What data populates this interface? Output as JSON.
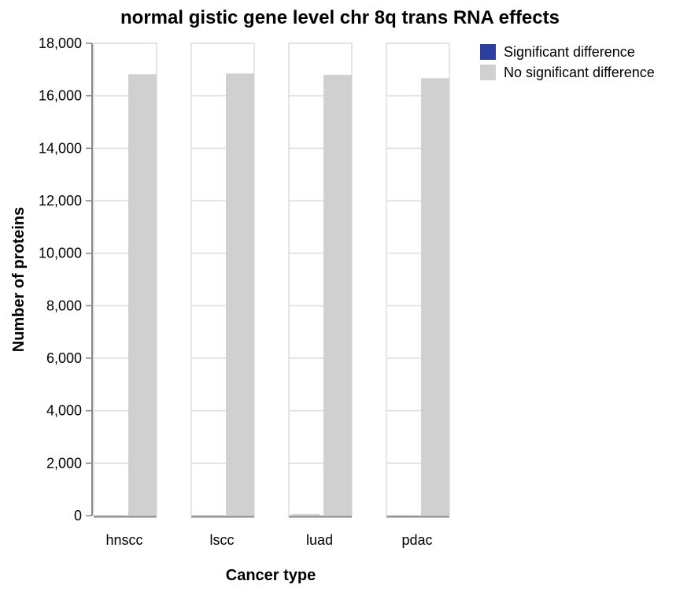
{
  "colors": {
    "significant": "#2c3e9e",
    "not_significant": "#d0d0d0",
    "gridline": "#dddddd",
    "axis": "#888888",
    "panel_border": "#dddddd"
  },
  "legend": {
    "items": [
      {
        "label": "Significant difference",
        "color": "#2c3e9e"
      },
      {
        "label": "No significant difference",
        "color": "#d0d0d0"
      }
    ],
    "placement": "top-right"
  },
  "chart_data": {
    "type": "bar",
    "title": "normal gistic gene level chr 8q trans RNA effects",
    "xlabel": "Cancer type",
    "ylabel": "Number of proteins",
    "ylim": [
      0,
      18000
    ],
    "yticks": [
      0,
      2000,
      4000,
      6000,
      8000,
      10000,
      12000,
      14000,
      16000,
      18000
    ],
    "ytick_labels": [
      "0",
      "2,000",
      "4,000",
      "6,000",
      "8,000",
      "10,000",
      "12,000",
      "14,000",
      "16,000",
      "18,000"
    ],
    "grid": true,
    "categories": [
      "hnscc",
      "lscc",
      "luad",
      "pdac"
    ],
    "series": [
      {
        "name": "Significant difference",
        "values": [
          20,
          20,
          60,
          15
        ]
      },
      {
        "name": "No significant difference",
        "values": [
          16820,
          16850,
          16800,
          16670
        ]
      }
    ]
  }
}
